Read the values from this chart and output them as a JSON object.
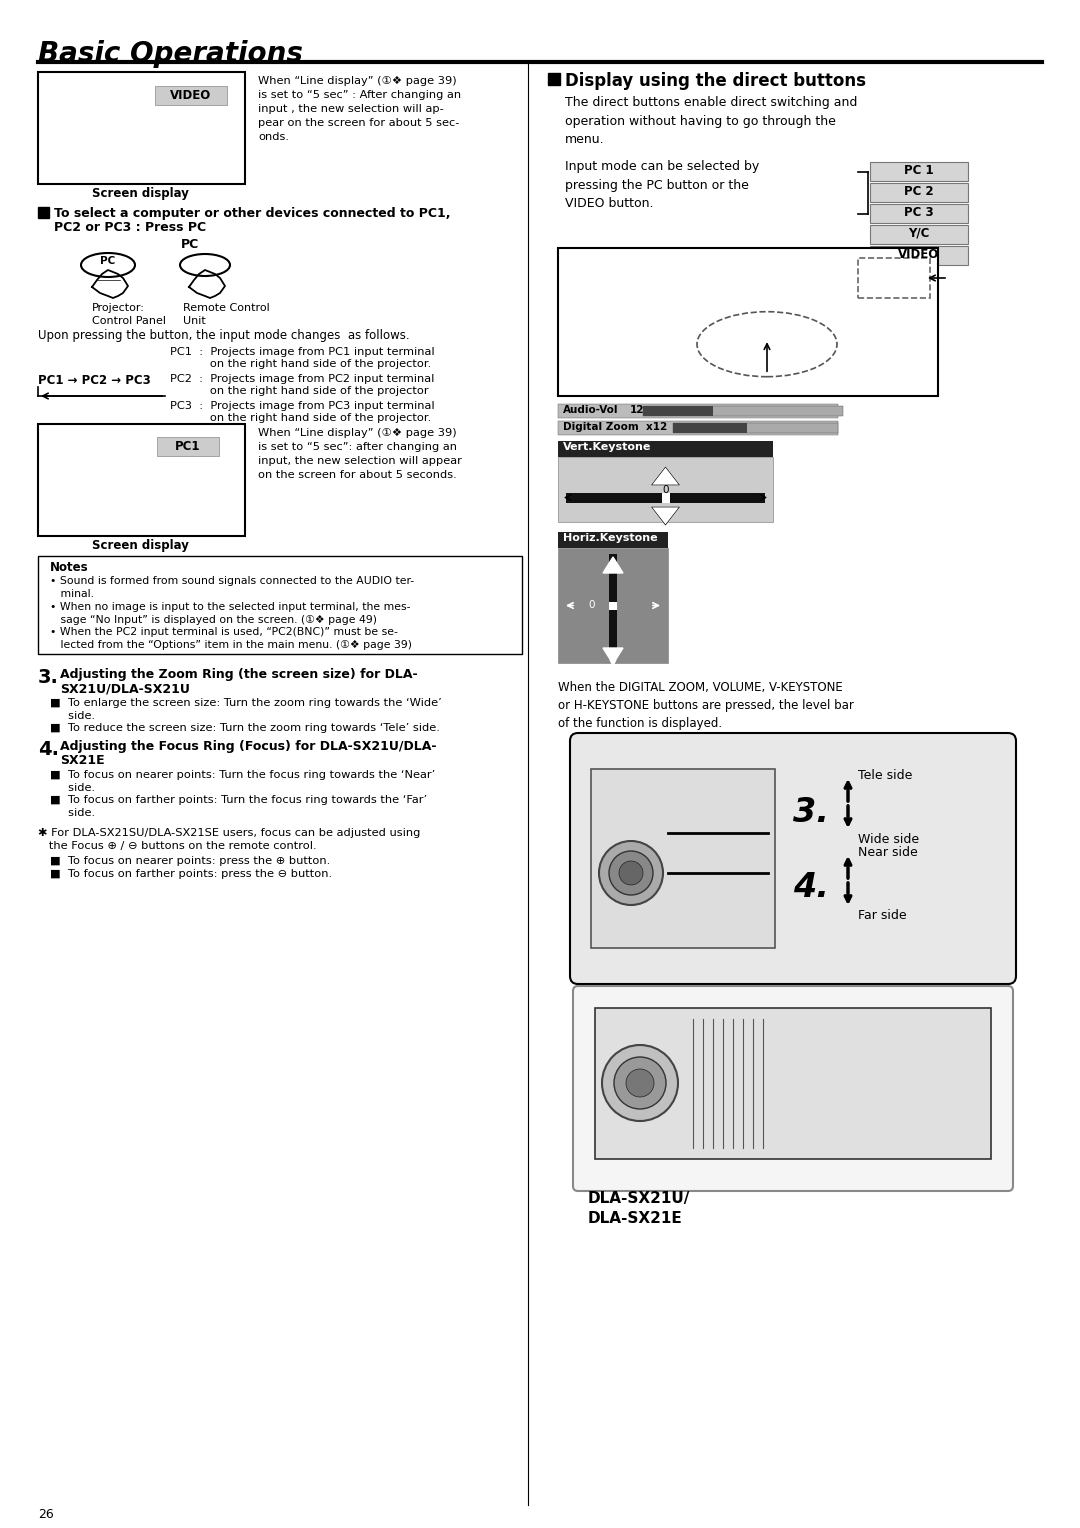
{
  "bg": "#ffffff",
  "title": "Basic Operations",
  "page_num": "26",
  "vid_desc": "When “Line display” (①❖ page 39)\nis set to “5 sec” : After changing an\ninput , the new selection will ap-\npear on the screen for about 5 sec-\nonds.",
  "sel_head1": "To select a computer or other devices connected to PC1,",
  "sel_head2": "PC2 or PC3 : Press PC",
  "pc_label": "PC",
  "proj_label": "Projector:\nControl Panel",
  "remote_label": "Remote Control\nUnit",
  "upon_text": "Upon pressing the button, the input mode changes  as follows.",
  "cycle_text": "PC1 → PC2 → PC3",
  "pc1_desc1": "PC1  :  Projects image from PC1 input terminal",
  "pc1_desc2": "           on the right hand side of the projector.",
  "pc2_desc1": "PC2  :  Projects image from PC2 input terminal",
  "pc2_desc2": "           on the right hand side of the projector",
  "pc3_desc1": "PC3  :  Projects image from PC3 input terminal",
  "pc3_desc2": "           on the right hand side of the projector.",
  "pc1_box_desc": "When “Line display” (①❖ page 39)\nis set to “5 sec”: after changing an\ninput, the new selection will appear\non the screen for about 5 seconds.",
  "screen_caption": "Screen display",
  "notes_title": "Notes",
  "note1": "• Sound is formed from sound signals connected to the AUDIO ter-\n   minal.",
  "note2": "• When no image is input to the selected input terminal, the mes-\n   sage “No Input” is displayed on the screen. (①❖ page 49)",
  "note3": "• When the PC2 input terminal is used, “PC2(BNC)” must be se-\n   lected from the “Options” item in the main menu. (①❖ page 39)",
  "step3_num": "3.",
  "step3_head1": "Adjusting the Zoom Ring (the screen size) for DLA-",
  "step3_head2": "SX21U/DLA-SX21U",
  "step3_item1": "■  To enlarge the screen size: Turn the zoom ring towards the ‘Wide’\n     side.",
  "step3_item2": "■  To reduce the screen size: Turn the zoom ring towards ‘Tele’ side.",
  "step4_num": "4.",
  "step4_head1": "Adjusting the Focus Ring (Focus) for DLA-SX21U/DLA-",
  "step4_head2": "SX21E",
  "step4_item1": "■  To focus on nearer points: Turn the focus ring towards the ‘Near’\n     side.",
  "step4_item2": "■  To focus on farther points: Turn the focus ring towards the ‘Far’\n     side.",
  "footnote1": "✱ For DLA-SX21SU/DLA-SX21SE users, focus can be adjusted using",
  "footnote2": "   the Focus ⊕ / ⊖ buttons on the remote control.",
  "focus_item1": "■  To focus on nearer points: press the ⊕ button.",
  "focus_item2": "■  To focus on farther points: press the ⊖ button.",
  "r_head": "Display using the direct buttons",
  "r_desc": "The direct buttons enable direct switching and\noperation without having to go through the\nmenu.",
  "r_input_desc": "Input mode can be selected by\npressing the PC button or the\nVIDEO button.",
  "btns": [
    "PC 1",
    "PC 2",
    "PC 3",
    "Y/C",
    "VIDEO"
  ],
  "audiobar_label": "Audio-Vol",
  "audiobar_val": "12",
  "digzoom_label": "Digital Zoom  x12",
  "vert_label": "Vert.Keystone",
  "horiz_label": "Horiz.Keystone",
  "when_text": "When the DIGITAL ZOOM, VOLUME, V-KEYSTONE\nor H-KEYSTONE buttons are pressed, the level bar\nof the function is displayed.",
  "tele": "Tele side",
  "wide": "Wide side",
  "near": "Near side",
  "far": "Far side",
  "step3_lbl": "3.",
  "step4_lbl": "4.",
  "model": "DLA-SX21U/\nDLA-SX21E"
}
